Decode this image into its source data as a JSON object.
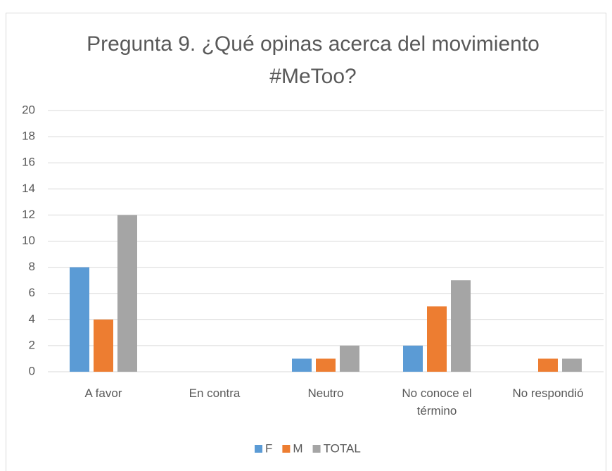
{
  "chart_data": {
    "type": "bar",
    "title": "Pregunta 9. ¿Qué opinas acerca del movimiento #MeToo?",
    "categories": [
      "A favor",
      "En contra",
      "Neutro",
      "No conoce el término",
      "No respondió"
    ],
    "series": [
      {
        "name": "F",
        "color": "#5b9bd5",
        "values": [
          8,
          0,
          1,
          2,
          0
        ]
      },
      {
        "name": "M",
        "color": "#ed7d31",
        "values": [
          4,
          0,
          1,
          5,
          1
        ]
      },
      {
        "name": "TOTAL",
        "color": "#a5a5a5",
        "values": [
          12,
          0,
          2,
          7,
          1
        ]
      }
    ],
    "ylim": [
      0,
      20
    ],
    "yticks": [
      0,
      2,
      4,
      6,
      8,
      10,
      12,
      14,
      16,
      18,
      20
    ],
    "grid": true,
    "legend": "bottom"
  }
}
